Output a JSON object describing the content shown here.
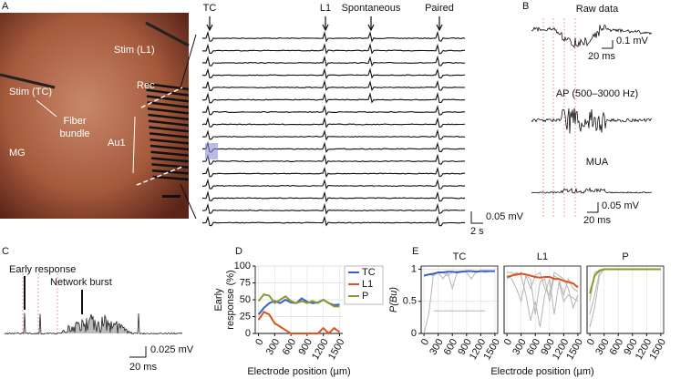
{
  "panel_labels": [
    "A",
    "B",
    "C",
    "D",
    "E"
  ],
  "panel_a": {
    "stim_l1": "Stim (L1)",
    "stim_tc": "Stim (TC)",
    "rec": "Rec",
    "fiber_bundle": [
      "Fiber",
      "bundle"
    ],
    "au1": "Au1",
    "mg": "MG"
  },
  "traces": {
    "markers": [
      "TC",
      "L1",
      "Spontaneous",
      "Paired"
    ],
    "scale_v": "0.05 mV",
    "scale_t": "2 s"
  },
  "panel_b": {
    "raw": "Raw data",
    "raw_v": "0.1 mV",
    "raw_t": "20 ms",
    "ap": "AP (500–3000 Hz)",
    "mua": "MUA",
    "mua_v": "0.05 mV",
    "mua_t": "20 ms"
  },
  "panel_c": {
    "early": "Early response",
    "burst": "Network burst",
    "scale_v": "0.025 mV",
    "scale_t": "20 ms"
  },
  "chart_data": [
    {
      "type": "line",
      "xlabel": "Electrode position (µm)",
      "ylabel": [
        "Early",
        "response (%)"
      ],
      "x": [
        0,
        100,
        200,
        300,
        400,
        500,
        600,
        700,
        800,
        900,
        1000,
        1100,
        1200,
        1300,
        1400,
        1500
      ],
      "xlim": [
        -60,
        1560
      ],
      "xticks": [
        0,
        300,
        600,
        900,
        1200,
        1500
      ],
      "ylim": [
        0,
        100
      ],
      "yticks": [
        0,
        25,
        50,
        75,
        100
      ],
      "grid": true,
      "legend": "upper right",
      "series": [
        {
          "name": "TC",
          "color": "#3a5fcd",
          "values": [
            28,
            38,
            45,
            48,
            45,
            50,
            46,
            45,
            52,
            47,
            45,
            46,
            50,
            45,
            42,
            43
          ]
        },
        {
          "name": "L1",
          "color": "#e0521d",
          "values": [
            20,
            32,
            28,
            15,
            10,
            5,
            0,
            0,
            0,
            0,
            0,
            0,
            8,
            0,
            8,
            2
          ]
        },
        {
          "name": "P",
          "color": "#8a9a2a",
          "values": [
            48,
            58,
            56,
            45,
            50,
            55,
            48,
            45,
            48,
            45,
            48,
            45,
            50,
            45,
            40,
            40
          ]
        }
      ]
    },
    {
      "type": "line",
      "title": "TC",
      "ylabel": "P(Bu)",
      "x": [
        0,
        100,
        200,
        300,
        400,
        500,
        600,
        700,
        800,
        900,
        1000,
        1100,
        1200,
        1300,
        1400,
        1500
      ],
      "xlim": [
        -60,
        1560
      ],
      "xticks": [
        0,
        300,
        600,
        900,
        1200,
        1500
      ],
      "ylim": [
        0,
        1.05
      ],
      "yticks": [
        0,
        0.5,
        1
      ],
      "grid": true,
      "series": [
        {
          "color": "#b5b5b5",
          "values": [
            0,
            0.3,
            0.92,
            0.95,
            0.95,
            0.9,
            0.95,
            0.97,
            0.97,
            0.97,
            0.97,
            0.97,
            0.97,
            0.97,
            0.97,
            0.97
          ]
        },
        {
          "color": "#b5b5b5",
          "values": [
            0.9,
            0.92,
            0.9,
            0.95,
            0.85,
            0.95,
            0.7,
            0.95,
            0.97,
            0.95,
            0.85,
            0.95,
            0.97,
            0.95,
            0.97,
            0.97
          ]
        },
        {
          "color": "#b5b5b5",
          "values": [
            null,
            null,
            0.35,
            0.35,
            0.35,
            0.35,
            0.35,
            0.35,
            0.35,
            0.35,
            0.35,
            0.35,
            0.35,
            0.35,
            null,
            null
          ]
        },
        {
          "color": "#3a5fcd",
          "values": [
            0.9,
            0.92,
            0.93,
            0.95,
            0.95,
            0.96,
            0.96,
            0.95,
            0.96,
            0.97,
            0.97,
            0.96,
            0.97,
            0.97,
            0.97,
            0.97
          ]
        }
      ]
    },
    {
      "type": "line",
      "title": "L1",
      "xlabel": "Electrode position (µm)",
      "x": [
        0,
        100,
        200,
        300,
        400,
        500,
        600,
        700,
        800,
        900,
        1000,
        1100,
        1200,
        1300,
        1400,
        1500
      ],
      "xlim": [
        -60,
        1560
      ],
      "xticks": [
        0,
        300,
        600,
        900,
        1200,
        1500
      ],
      "ylim": [
        0,
        1.05
      ],
      "series": [
        {
          "color": "#b5b5b5",
          "values": [
            0.9,
            0.85,
            0.7,
            0.5,
            0.9,
            0.85,
            0.3,
            0.8,
            0.85,
            0.5,
            0.9,
            0.85,
            0.6,
            0.85,
            0.7,
            0.65
          ]
        },
        {
          "color": "#b5b5b5",
          "values": [
            0.85,
            0.9,
            0.95,
            0.9,
            0.6,
            0.2,
            0.5,
            0.1,
            0.6,
            0.85,
            0.3,
            0.8,
            0.5,
            0.6,
            0.55,
            0.5
          ]
        },
        {
          "color": "#b5b5b5",
          "values": [
            0.95,
            0.95,
            0.9,
            0.95,
            0.9,
            0.7,
            0.9,
            0.95,
            0.7,
            0.6,
            0.95,
            0.9,
            0.85,
            0.7,
            0.4,
            0.6
          ]
        },
        {
          "color": "#e0521d",
          "values": [
            0.88,
            0.9,
            0.92,
            0.93,
            0.92,
            0.9,
            0.88,
            0.87,
            0.88,
            0.88,
            0.85,
            0.85,
            0.82,
            0.8,
            0.78,
            0.72
          ]
        }
      ]
    },
    {
      "type": "line",
      "title": "P",
      "x": [
        0,
        100,
        200,
        300,
        400,
        500,
        600,
        700,
        800,
        900,
        1000,
        1100,
        1200,
        1300,
        1400,
        1500
      ],
      "xlim": [
        -60,
        1560
      ],
      "xticks": [
        0,
        300,
        600,
        900,
        1200,
        1500
      ],
      "ylim": [
        0,
        1.05
      ],
      "series": [
        {
          "color": "#b5b5b5",
          "values": [
            0.1,
            0.4,
            0.9,
            1,
            1,
            1,
            1,
            1,
            1,
            1,
            1,
            1,
            1,
            1,
            1,
            1
          ]
        },
        {
          "color": "#b5b5b5",
          "values": [
            0.5,
            0.95,
            0.98,
            0.99,
            1,
            1,
            1,
            1,
            1,
            1,
            1,
            1,
            1,
            1,
            1,
            1
          ]
        },
        {
          "color": "#b5b5b5",
          "values": [
            0.3,
            0.6,
            0.95,
            1,
            1,
            1,
            1,
            1,
            1,
            1,
            1,
            1,
            1,
            1,
            1,
            1
          ]
        },
        {
          "color": "#8a9a2a",
          "values": [
            0.62,
            0.9,
            0.98,
            1,
            1,
            1,
            1,
            1,
            1,
            1,
            1,
            1,
            1,
            1,
            1,
            1
          ]
        }
      ]
    }
  ]
}
